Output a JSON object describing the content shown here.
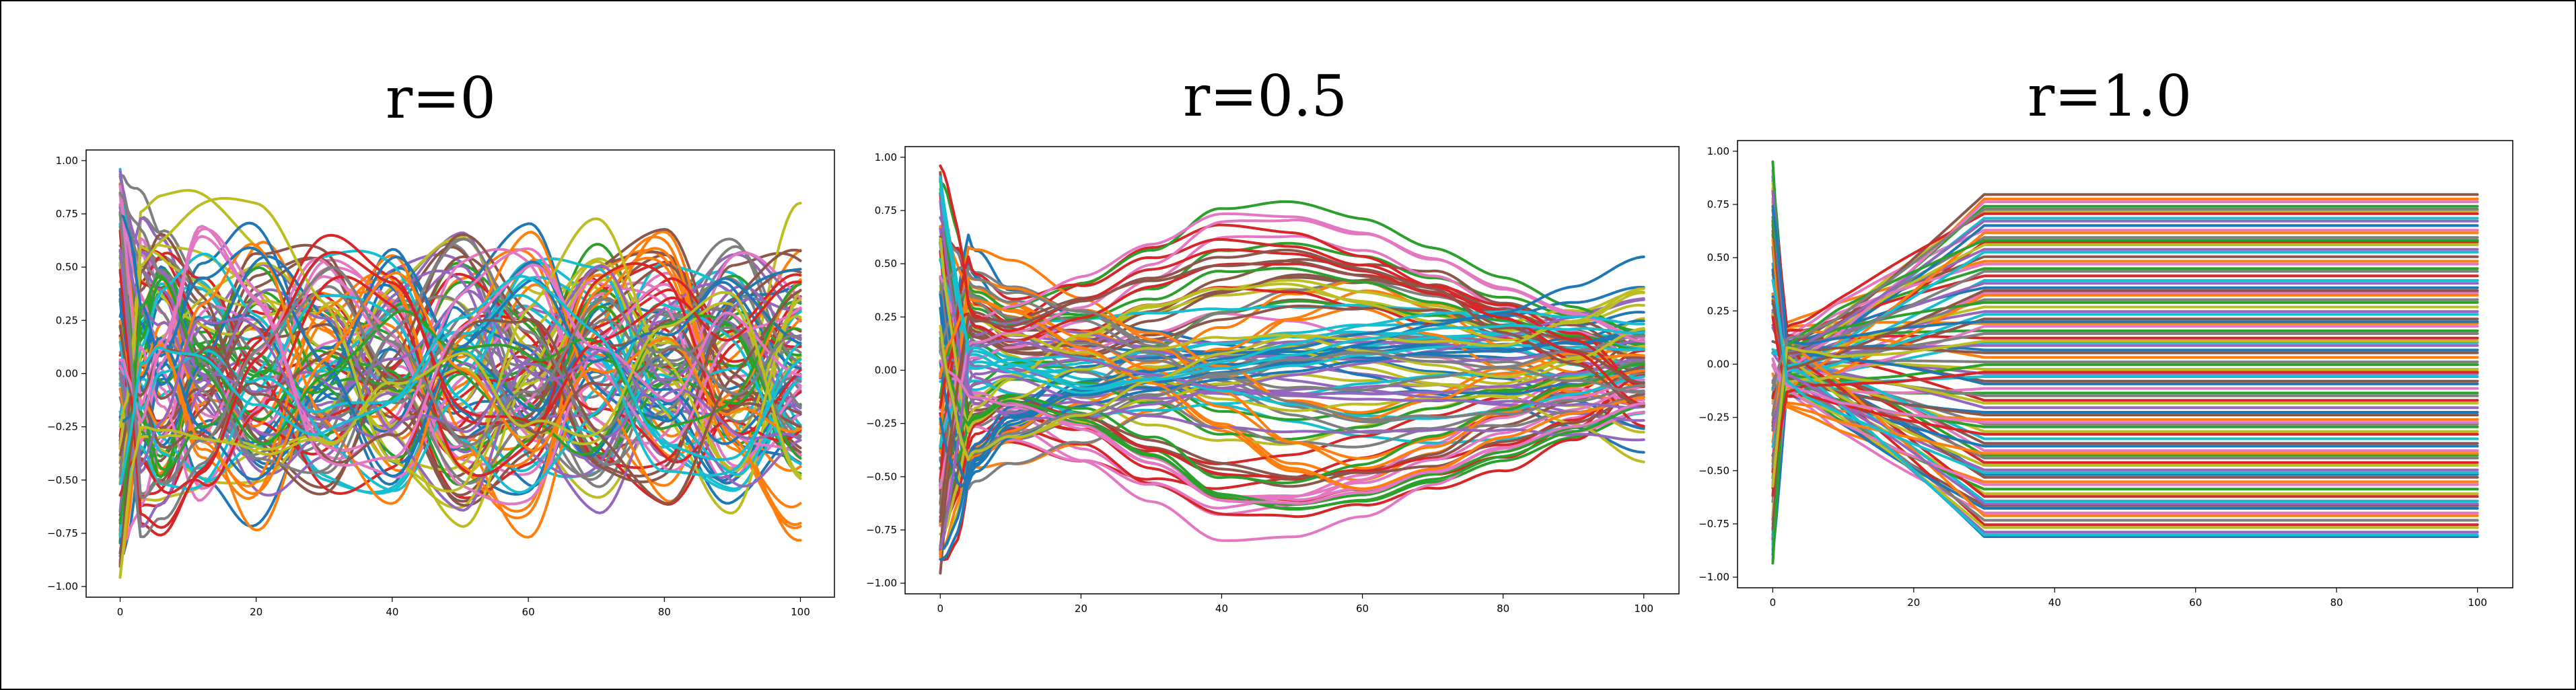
{
  "palette": [
    "#1f77b4",
    "#ff7f0e",
    "#2ca02c",
    "#d62728",
    "#9467bd",
    "#8c564b",
    "#e377c2",
    "#7f7f7f",
    "#bcbd22",
    "#17becf"
  ],
  "chart_data": [
    {
      "type": "line",
      "title": "r=0",
      "xlabel": "",
      "ylabel": "",
      "xlim": [
        -5,
        105
      ],
      "ylim": [
        -1.05,
        1.05
      ],
      "xticks": [
        0,
        20,
        40,
        60,
        80,
        100
      ],
      "xtick_labels": [
        "0",
        "20",
        "40",
        "60",
        "80",
        "100"
      ],
      "yticks": [
        -1.0,
        -0.75,
        -0.5,
        -0.25,
        0.0,
        0.25,
        0.5,
        0.75,
        1.0
      ],
      "ytick_labels": [
        "−1.00",
        "−0.75",
        "−0.50",
        "−0.25",
        "0.00",
        "0.25",
        "0.50",
        "0.75",
        "1.00"
      ],
      "grid": false,
      "legend": "none",
      "series_count": 100,
      "series": [
        {
          "x": [
            0,
            1,
            3,
            6,
            12,
            20,
            30,
            40,
            50,
            60,
            70,
            80,
            90,
            100
          ],
          "y": [
            0.98,
            0.55,
            0.12,
            -0.32,
            0.25,
            0.62,
            0.1,
            -0.55,
            0.32,
            0.5,
            -0.36,
            -0.12,
            0.58,
            0.4
          ]
        },
        {
          "x": [
            0,
            1,
            3,
            6,
            12,
            20,
            30,
            40,
            50,
            60,
            70,
            80,
            90,
            100
          ],
          "y": [
            -0.96,
            -0.5,
            0.18,
            0.42,
            -0.18,
            -0.6,
            0.12,
            0.46,
            -0.3,
            -0.64,
            0.28,
            0.6,
            -0.2,
            -0.66
          ]
        },
        {
          "x": [
            0,
            1,
            3,
            6,
            12,
            20,
            30,
            40,
            50,
            60,
            70,
            80,
            90,
            100
          ],
          "y": [
            0.6,
            0.3,
            -0.1,
            -0.45,
            0.1,
            0.4,
            -0.25,
            -0.35,
            0.3,
            0.15,
            -0.45,
            0.2,
            0.35,
            -0.3
          ]
        },
        {
          "x": [
            0,
            1,
            3,
            6,
            12,
            20,
            30,
            40,
            50,
            60,
            70,
            80,
            90,
            100
          ],
          "y": [
            -0.8,
            -0.6,
            -0.75,
            -0.82,
            -0.5,
            0.05,
            0.45,
            0.2,
            -0.4,
            -0.2,
            0.4,
            0.45,
            -0.1,
            0.2
          ]
        },
        {
          "x": [
            0,
            1,
            3,
            6,
            12,
            20,
            30,
            40,
            50,
            60,
            70,
            80,
            90,
            100
          ],
          "y": [
            0.3,
            0.55,
            0.7,
            0.5,
            -0.2,
            -0.5,
            -0.1,
            0.4,
            0.55,
            -0.3,
            -0.5,
            0.25,
            0.5,
            0.1
          ]
        },
        {
          "x": [
            0,
            1,
            3,
            6,
            12,
            20,
            30,
            40,
            50,
            60,
            70,
            80,
            90,
            100
          ],
          "y": [
            -0.3,
            -0.2,
            0.35,
            0.6,
            0.3,
            -0.35,
            -0.55,
            0.05,
            0.6,
            0.25,
            -0.4,
            -0.5,
            0.3,
            0.5
          ]
        },
        {
          "x": [
            0,
            1,
            3,
            6,
            12,
            20,
            30,
            40,
            50,
            60,
            70,
            80,
            90,
            100
          ],
          "y": [
            0.1,
            -0.45,
            -0.6,
            -0.2,
            0.55,
            0.25,
            -0.45,
            -0.3,
            0.35,
            0.45,
            -0.2,
            -0.4,
            0.4,
            0.2
          ]
        },
        {
          "x": [
            0,
            1,
            3,
            6,
            12,
            20,
            30,
            40,
            50,
            60,
            70,
            80,
            90,
            100
          ],
          "y": [
            0.9,
            0.7,
            0.8,
            0.6,
            0.2,
            -0.3,
            -0.45,
            0.15,
            0.5,
            -0.1,
            -0.55,
            0.1,
            0.45,
            -0.2
          ]
        },
        {
          "x": [
            0,
            1,
            3,
            6,
            12,
            20,
            30,
            40,
            50,
            60,
            70,
            80,
            90,
            100
          ],
          "y": [
            0.5,
            0.2,
            0.6,
            0.65,
            0.7,
            0.65,
            0.3,
            -0.35,
            -0.55,
            0.2,
            0.55,
            -0.1,
            -0.45,
            0.6
          ]
        },
        {
          "x": [
            0,
            1,
            3,
            6,
            12,
            20,
            30,
            40,
            50,
            60,
            70,
            80,
            90,
            100
          ],
          "y": [
            -0.55,
            -0.2,
            0.1,
            0.35,
            0.45,
            0.1,
            -0.35,
            -0.45,
            0.05,
            0.5,
            0.35,
            -0.3,
            -0.4,
            0.2
          ]
        }
      ]
    },
    {
      "type": "line",
      "title": "r=0.5",
      "xlabel": "",
      "ylabel": "",
      "xlim": [
        -5,
        105
      ],
      "ylim": [
        -1.05,
        1.05
      ],
      "xticks": [
        0,
        20,
        40,
        60,
        80,
        100
      ],
      "xtick_labels": [
        "0",
        "20",
        "40",
        "60",
        "80",
        "100"
      ],
      "yticks": [
        -1.0,
        -0.75,
        -0.5,
        -0.25,
        0.0,
        0.25,
        0.5,
        0.75,
        1.0
      ],
      "ytick_labels": [
        "−1.00",
        "−0.75",
        "−0.50",
        "−0.25",
        "0.00",
        "0.25",
        "0.50",
        "0.75",
        "1.00"
      ],
      "grid": false,
      "legend": "none",
      "series_count": 100,
      "series": [
        {
          "x": [
            0,
            2,
            5,
            10,
            20,
            30,
            40,
            50,
            60,
            70,
            80,
            90,
            100
          ],
          "y": [
            0.98,
            0.75,
            0.45,
            0.25,
            0.1,
            0.05,
            0.02,
            0.0,
            -0.05,
            -0.1,
            -0.12,
            -0.2,
            -0.3
          ]
        },
        {
          "x": [
            0,
            2,
            5,
            10,
            20,
            30,
            40,
            50,
            60,
            70,
            80,
            90,
            100
          ],
          "y": [
            -0.85,
            -0.5,
            -0.45,
            -0.4,
            -0.25,
            -0.1,
            0.1,
            0.3,
            0.4,
            0.3,
            0.15,
            0.05,
            0.0
          ]
        },
        {
          "x": [
            0,
            2,
            5,
            10,
            20,
            30,
            40,
            50,
            60,
            70,
            80,
            90,
            100
          ],
          "y": [
            0.7,
            0.4,
            0.25,
            0.15,
            0.2,
            0.35,
            0.55,
            0.6,
            0.55,
            0.45,
            0.35,
            0.25,
            0.15
          ]
        },
        {
          "x": [
            0,
            2,
            5,
            10,
            20,
            30,
            40,
            50,
            60,
            70,
            80,
            90,
            100
          ],
          "y": [
            -0.95,
            -0.65,
            -0.35,
            -0.25,
            -0.35,
            -0.5,
            -0.6,
            -0.58,
            -0.5,
            -0.4,
            -0.3,
            -0.15,
            0.1
          ]
        },
        {
          "x": [
            0,
            2,
            5,
            10,
            20,
            30,
            40,
            50,
            60,
            70,
            80,
            90,
            100
          ],
          "y": [
            0.45,
            0.15,
            -0.05,
            -0.1,
            -0.05,
            0.0,
            0.05,
            0.08,
            0.1,
            0.12,
            0.15,
            0.2,
            0.25
          ]
        },
        {
          "x": [
            0,
            2,
            5,
            10,
            20,
            30,
            40,
            50,
            60,
            70,
            80,
            90,
            100
          ],
          "y": [
            -0.55,
            -0.3,
            -0.2,
            -0.15,
            -0.2,
            -0.3,
            -0.4,
            -0.45,
            -0.4,
            -0.35,
            -0.2,
            -0.1,
            0.05
          ]
        },
        {
          "x": [
            0,
            2,
            5,
            10,
            20,
            30,
            40,
            50,
            60,
            70,
            80,
            90,
            100
          ],
          "y": [
            0.2,
            0.1,
            0.15,
            0.2,
            0.3,
            0.45,
            0.6,
            0.58,
            0.5,
            0.38,
            0.25,
            0.15,
            0.05
          ]
        },
        {
          "x": [
            0,
            2,
            5,
            10,
            20,
            30,
            40,
            50,
            60,
            70,
            80,
            90,
            100
          ],
          "y": [
            -0.75,
            -0.55,
            -0.4,
            -0.3,
            -0.15,
            0.0,
            0.15,
            0.25,
            0.3,
            0.25,
            0.2,
            0.1,
            0.0
          ]
        },
        {
          "x": [
            0,
            2,
            5,
            10,
            20,
            30,
            40,
            50,
            60,
            70,
            80,
            90,
            100
          ],
          "y": [
            0.85,
            0.5,
            0.3,
            0.2,
            0.05,
            -0.1,
            -0.2,
            -0.25,
            -0.2,
            -0.15,
            -0.1,
            -0.2,
            -0.35
          ]
        },
        {
          "x": [
            0,
            2,
            5,
            10,
            20,
            30,
            40,
            50,
            60,
            70,
            80,
            90,
            100
          ],
          "y": [
            -0.1,
            0.05,
            0.1,
            0.05,
            0.0,
            0.05,
            0.1,
            0.15,
            0.2,
            0.22,
            0.2,
            0.15,
            0.1
          ]
        }
      ]
    },
    {
      "type": "line",
      "title": "r=1.0",
      "xlabel": "",
      "ylabel": "",
      "xlim": [
        -5,
        105
      ],
      "ylim": [
        -1.05,
        1.05
      ],
      "xticks": [
        0,
        20,
        40,
        60,
        80,
        100
      ],
      "xtick_labels": [
        "0",
        "20",
        "40",
        "60",
        "80",
        "100"
      ],
      "yticks": [
        -1.0,
        -0.75,
        -0.5,
        -0.25,
        0.0,
        0.25,
        0.5,
        0.75,
        1.0
      ],
      "ytick_labels": [
        "−1.00",
        "−0.75",
        "−0.50",
        "−0.25",
        "0.00",
        "0.25",
        "0.50",
        "0.75",
        "1.00"
      ],
      "grid": false,
      "legend": "none",
      "series_count": 100,
      "series": [
        {
          "x": [
            0,
            2,
            5,
            10,
            20,
            30,
            40,
            60,
            80,
            100
          ],
          "y": [
            0.92,
            0.4,
            0.3,
            0.35,
            0.5,
            0.62,
            0.7,
            0.78,
            0.8,
            0.8
          ]
        },
        {
          "x": [
            0,
            2,
            5,
            10,
            20,
            30,
            40,
            60,
            80,
            100
          ],
          "y": [
            -0.98,
            -0.7,
            -0.72,
            -0.8,
            -0.82,
            -0.83,
            -0.83,
            -0.83,
            -0.83,
            -0.83
          ]
        },
        {
          "x": [
            0,
            2,
            5,
            10,
            20,
            30,
            40,
            60,
            80,
            100
          ],
          "y": [
            0.6,
            0.2,
            0.3,
            0.45,
            0.55,
            0.6,
            0.62,
            0.63,
            0.63,
            0.63
          ]
        },
        {
          "x": [
            0,
            2,
            5,
            10,
            20,
            30,
            40,
            60,
            80,
            100
          ],
          "y": [
            -0.8,
            -0.55,
            -0.45,
            -0.5,
            -0.6,
            -0.65,
            -0.68,
            -0.7,
            -0.7,
            -0.7
          ]
        },
        {
          "x": [
            0,
            2,
            5,
            10,
            20,
            30,
            40,
            60,
            80,
            100
          ],
          "y": [
            0.2,
            0.0,
            0.05,
            0.15,
            0.25,
            0.3,
            0.33,
            0.35,
            0.35,
            0.35
          ]
        },
        {
          "x": [
            0,
            2,
            5,
            10,
            20,
            30,
            40,
            60,
            80,
            100
          ],
          "y": [
            -0.4,
            -0.2,
            -0.25,
            -0.35,
            -0.42,
            -0.45,
            -0.47,
            -0.48,
            -0.48,
            -0.48
          ]
        },
        {
          "x": [
            0,
            2,
            5,
            10,
            20,
            30,
            40,
            60,
            80,
            100
          ],
          "y": [
            0.75,
            0.35,
            0.4,
            0.55,
            0.68,
            0.74,
            0.77,
            0.78,
            0.78,
            0.78
          ]
        },
        {
          "x": [
            0,
            2,
            5,
            10,
            20,
            30,
            40,
            60,
            80,
            100
          ],
          "y": [
            -0.6,
            -0.3,
            -0.1,
            0.05,
            0.1,
            0.12,
            0.13,
            0.13,
            0.13,
            0.13
          ]
        },
        {
          "x": [
            0,
            2,
            5,
            10,
            20,
            30,
            40,
            60,
            80,
            100
          ],
          "y": [
            0.4,
            0.3,
            0.2,
            0.0,
            -0.15,
            -0.22,
            -0.26,
            -0.28,
            -0.28,
            -0.28
          ]
        },
        {
          "x": [
            0,
            2,
            5,
            10,
            20,
            30,
            40,
            60,
            80,
            100
          ],
          "y": [
            -0.2,
            0.2,
            0.35,
            0.4,
            0.42,
            0.43,
            0.44,
            0.44,
            0.44,
            0.44
          ]
        }
      ]
    }
  ]
}
